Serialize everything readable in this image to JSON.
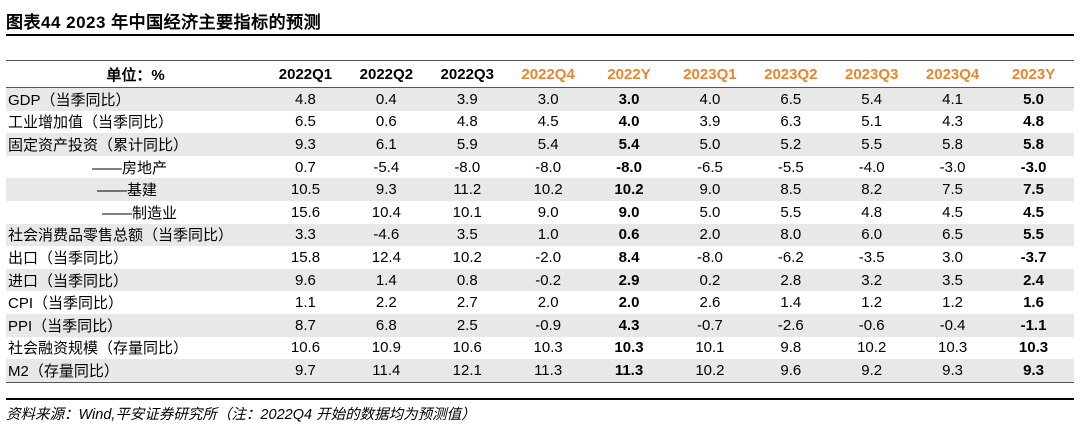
{
  "title": "图表44    2023 年中国经济主要指标的预测",
  "header": {
    "unit_label": "单位：%",
    "columns": [
      "2022Q1",
      "2022Q2",
      "2022Q3",
      "2022Q4",
      "2022Y",
      "2023Q1",
      "2023Q2",
      "2023Q3",
      "2023Q4",
      "2023Y"
    ]
  },
  "accent_color": "#E9852C",
  "rows": [
    {
      "label": "GDP（当季同比）",
      "values": [
        "4.8",
        "0.4",
        "3.9",
        "3.0",
        "3.0",
        "4.0",
        "6.5",
        "5.4",
        "4.1",
        "5.0"
      ]
    },
    {
      "label": "工业增加值（当季同比）",
      "values": [
        "6.5",
        "0.6",
        "4.8",
        "4.5",
        "4.0",
        "3.9",
        "6.3",
        "5.1",
        "4.3",
        "4.8"
      ]
    },
    {
      "label": "固定资产投资（累计同比）",
      "values": [
        "9.3",
        "6.1",
        "5.9",
        "5.4",
        "5.4",
        "5.0",
        "5.2",
        "5.5",
        "5.8",
        "5.8"
      ]
    },
    {
      "label": "——房地产",
      "values": [
        "0.7",
        "-5.4",
        "-8.0",
        "-8.0",
        "-8.0",
        "-6.5",
        "-5.5",
        "-4.0",
        "-3.0",
        "-3.0"
      ]
    },
    {
      "label": "——基建",
      "values": [
        "10.5",
        "9.3",
        "11.2",
        "10.2",
        "10.2",
        "9.0",
        "8.5",
        "8.2",
        "7.5",
        "7.5"
      ]
    },
    {
      "label": "——制造业",
      "values": [
        "15.6",
        "10.4",
        "10.1",
        "9.0",
        "9.0",
        "5.0",
        "5.5",
        "4.8",
        "4.5",
        "4.5"
      ]
    },
    {
      "label": "社会消费品零售总额（当季同比）",
      "values": [
        "3.3",
        "-4.6",
        "3.5",
        "1.0",
        "0.6",
        "2.0",
        "8.0",
        "6.0",
        "6.5",
        "5.5"
      ]
    },
    {
      "label": "出口（当季同比）",
      "values": [
        "15.8",
        "12.4",
        "10.2",
        "-2.0",
        "8.4",
        "-8.0",
        "-6.2",
        "-3.5",
        "3.0",
        "-3.7"
      ]
    },
    {
      "label": "进口（当季同比）",
      "values": [
        "9.6",
        "1.4",
        "0.8",
        "-0.2",
        "2.9",
        "0.2",
        "2.8",
        "3.2",
        "3.5",
        "2.4"
      ]
    },
    {
      "label": "CPI（当季同比）",
      "values": [
        "1.1",
        "2.2",
        "2.7",
        "2.0",
        "2.0",
        "2.6",
        "1.4",
        "1.2",
        "1.2",
        "1.6"
      ]
    },
    {
      "label": "PPI（当季同比）",
      "values": [
        "8.7",
        "6.8",
        "2.5",
        "-0.9",
        "4.3",
        "-0.7",
        "-2.6",
        "-0.6",
        "-0.4",
        "-1.1"
      ]
    },
    {
      "label": "社会融资规模（存量同比）",
      "values": [
        "10.6",
        "10.9",
        "10.6",
        "10.3",
        "10.3",
        "10.1",
        "9.8",
        "10.2",
        "10.3",
        "10.3"
      ]
    },
    {
      "label": "M2（存量同比）",
      "values": [
        "9.7",
        "11.4",
        "12.1",
        "11.3",
        "11.3",
        "10.2",
        "9.6",
        "9.2",
        "9.3",
        "9.3"
      ]
    }
  ],
  "source": "资料来源：Wind,平安证券研究所（注：2022Q4 开始的数据均为预测值）"
}
